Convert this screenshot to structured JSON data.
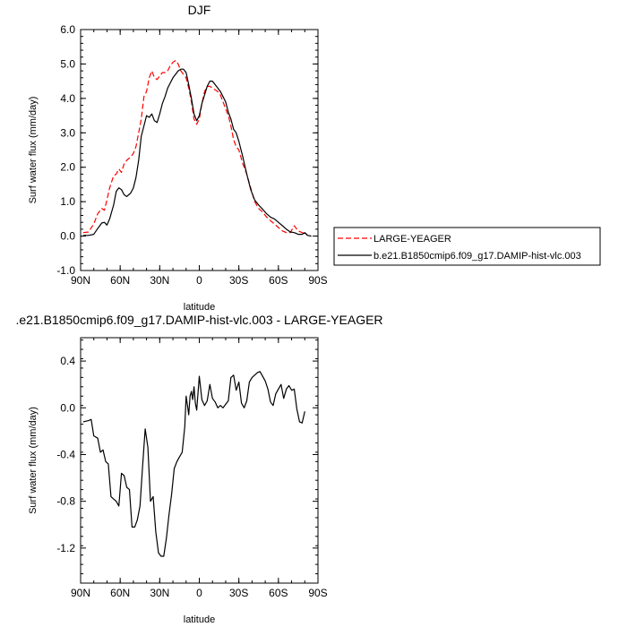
{
  "chart_data": [
    {
      "type": "line",
      "title": "DJF",
      "xlabel": "latitude",
      "ylabel": "Surf water flux (mm/day)",
      "xlim": [
        90,
        -90
      ],
      "ylim": [
        -1.0,
        6.0
      ],
      "xticks": [
        90,
        60,
        30,
        0,
        -30,
        -60,
        -90
      ],
      "xtick_labels": [
        "90N",
        "60N",
        "30N",
        "0",
        "30S",
        "60S",
        "90S"
      ],
      "yticks": [
        -1.0,
        0.0,
        1.0,
        2.0,
        3.0,
        4.0,
        5.0,
        6.0
      ],
      "ytick_labels": [
        "-1.0",
        "0.0",
        "1.0",
        "2.0",
        "3.0",
        "4.0",
        "5.0",
        "6.0"
      ],
      "grid": false,
      "legend_position": "outside-right",
      "series": [
        {
          "name": "LARGE-YEAGER",
          "color": "#ff0000",
          "dash": "dashed",
          "x": [
            88,
            84,
            80,
            77,
            74,
            72,
            70,
            68,
            65,
            63,
            61,
            59,
            57,
            55,
            52,
            50,
            48,
            46,
            44,
            42,
            40,
            38,
            36,
            34,
            32,
            30,
            28,
            26,
            24,
            22,
            20,
            18,
            16,
            14,
            12,
            10,
            8,
            6,
            4,
            2,
            0,
            -2,
            -4,
            -6,
            -8,
            -10,
            -12,
            -14,
            -16,
            -18,
            -20,
            -22,
            -24,
            -26,
            -28,
            -30,
            -33,
            -36,
            -39,
            -42,
            -45,
            -48,
            -51,
            -54,
            -57,
            -60,
            -63,
            -66,
            -69,
            -72,
            -75,
            -78,
            -80,
            -82
          ],
          "y": [
            0.1,
            0.12,
            0.35,
            0.65,
            0.8,
            0.75,
            1.05,
            1.4,
            1.75,
            1.8,
            1.95,
            1.85,
            2.1,
            2.2,
            2.3,
            2.4,
            2.6,
            3.0,
            3.4,
            4.05,
            4.2,
            4.6,
            4.8,
            4.6,
            4.55,
            4.65,
            4.75,
            4.75,
            4.8,
            4.95,
            5.05,
            5.1,
            5.0,
            4.8,
            4.7,
            4.6,
            4.3,
            3.9,
            3.4,
            3.25,
            3.4,
            3.85,
            4.2,
            4.35,
            4.35,
            4.3,
            4.25,
            4.2,
            4.1,
            3.9,
            3.7,
            3.5,
            3.2,
            2.8,
            2.6,
            2.5,
            2.1,
            1.8,
            1.4,
            1.0,
            0.8,
            0.7,
            0.55,
            0.45,
            0.35,
            0.25,
            0.15,
            0.1,
            0.1,
            0.3,
            0.15,
            0.1,
            0.08,
            0.05
          ]
        },
        {
          "name": "b.e21.B1850cmip6.f09_g17.DAMIP-hist-vlc.003",
          "color": "#000000",
          "dash": "solid",
          "x": [
            88,
            84,
            80,
            77,
            74,
            72,
            70,
            68,
            65,
            63,
            61,
            59,
            57,
            55,
            52,
            50,
            48,
            46,
            44,
            42,
            40,
            38,
            36,
            34,
            32,
            30,
            28,
            26,
            24,
            22,
            20,
            18,
            16,
            14,
            12,
            10,
            8,
            6,
            4,
            2,
            0,
            -2,
            -4,
            -6,
            -8,
            -10,
            -12,
            -14,
            -16,
            -18,
            -20,
            -22,
            -24,
            -26,
            -28,
            -30,
            -33,
            -36,
            -39,
            -42,
            -45,
            -48,
            -51,
            -54,
            -57,
            -60,
            -63,
            -66,
            -69,
            -72,
            -75,
            -78,
            -80,
            -82,
            -85
          ],
          "y": [
            0.02,
            0.02,
            0.05,
            0.22,
            0.38,
            0.4,
            0.32,
            0.5,
            0.9,
            1.3,
            1.4,
            1.35,
            1.2,
            1.15,
            1.25,
            1.4,
            1.7,
            2.2,
            2.9,
            3.2,
            3.5,
            3.45,
            3.55,
            3.35,
            3.3,
            3.55,
            3.85,
            4.05,
            4.3,
            4.45,
            4.6,
            4.7,
            4.8,
            4.85,
            4.85,
            4.75,
            4.4,
            4.0,
            3.55,
            3.35,
            3.5,
            3.85,
            4.1,
            4.35,
            4.5,
            4.5,
            4.4,
            4.3,
            4.2,
            4.05,
            3.9,
            3.6,
            3.4,
            3.1,
            3.0,
            2.75,
            2.3,
            1.8,
            1.35,
            1.05,
            0.9,
            0.78,
            0.65,
            0.55,
            0.5,
            0.4,
            0.3,
            0.2,
            0.12,
            0.1,
            0.05,
            0.05,
            0.1,
            0.02,
            0.0
          ]
        }
      ]
    },
    {
      "type": "line",
      "title": ".e21.B1850cmip6.f09_g17.DAMIP-hist-vlc.003 - LARGE-YEAGER",
      "xlabel": "latitude",
      "ylabel": "Surf water flux (mm/day)",
      "xlim": [
        90,
        -90
      ],
      "ylim": [
        -1.5,
        0.6
      ],
      "xticks": [
        90,
        60,
        30,
        0,
        -30,
        -60,
        -90
      ],
      "xtick_labels": [
        "90N",
        "60N",
        "30N",
        "0",
        "30S",
        "60S",
        "90S"
      ],
      "yticks": [
        -1.2,
        -0.8,
        -0.4,
        0.0,
        0.4
      ],
      "ytick_labels": [
        "-1.2",
        "-0.8",
        "-0.4",
        "0.0",
        "0.4"
      ],
      "grid": false,
      "series": [
        {
          "color": "#000000",
          "dash": "solid",
          "x": [
            88,
            84,
            82,
            80,
            77,
            75,
            73,
            71,
            69,
            67,
            65,
            63,
            61,
            59,
            57,
            55,
            53,
            51,
            49,
            47,
            45,
            43,
            41,
            39,
            37,
            35,
            33,
            31,
            29,
            27,
            25,
            23,
            21,
            19,
            17,
            15,
            13,
            11,
            10,
            9,
            8,
            7,
            6,
            5,
            4,
            3,
            2,
            0,
            -2,
            -4,
            -6,
            -8,
            -10,
            -12,
            -14,
            -16,
            -18,
            -20,
            -22,
            -24,
            -26,
            -28,
            -30,
            -32,
            -34,
            -36,
            -38,
            -40,
            -42,
            -44,
            -46,
            -48,
            -50,
            -52,
            -54,
            -56,
            -58,
            -60,
            -62,
            -64,
            -66,
            -68,
            -70,
            -72,
            -74,
            -76,
            -78,
            -80
          ],
          "y": [
            -0.12,
            -0.11,
            -0.1,
            -0.24,
            -0.26,
            -0.38,
            -0.36,
            -0.46,
            -0.48,
            -0.76,
            -0.78,
            -0.8,
            -0.84,
            -0.56,
            -0.58,
            -0.68,
            -0.7,
            -1.02,
            -1.02,
            -0.96,
            -0.84,
            -0.5,
            -0.18,
            -0.34,
            -0.8,
            -0.76,
            -1.06,
            -1.24,
            -1.27,
            -1.27,
            -1.12,
            -0.92,
            -0.74,
            -0.52,
            -0.46,
            -0.42,
            -0.38,
            -0.16,
            0.1,
            0.02,
            -0.06,
            0.1,
            0.14,
            0.07,
            0.18,
            0.04,
            -0.02,
            0.27,
            0.07,
            0.02,
            0.06,
            0.2,
            0.08,
            0.05,
            0.0,
            0.02,
            0.0,
            0.03,
            0.06,
            0.26,
            0.28,
            0.15,
            0.22,
            0.04,
            0.0,
            0.06,
            0.22,
            0.26,
            0.28,
            0.3,
            0.31,
            0.27,
            0.23,
            0.16,
            0.05,
            0.02,
            0.12,
            0.16,
            0.2,
            0.08,
            0.16,
            0.19,
            0.15,
            0.16,
            -0.01,
            -0.12,
            -0.13,
            -0.03
          ]
        }
      ]
    }
  ]
}
